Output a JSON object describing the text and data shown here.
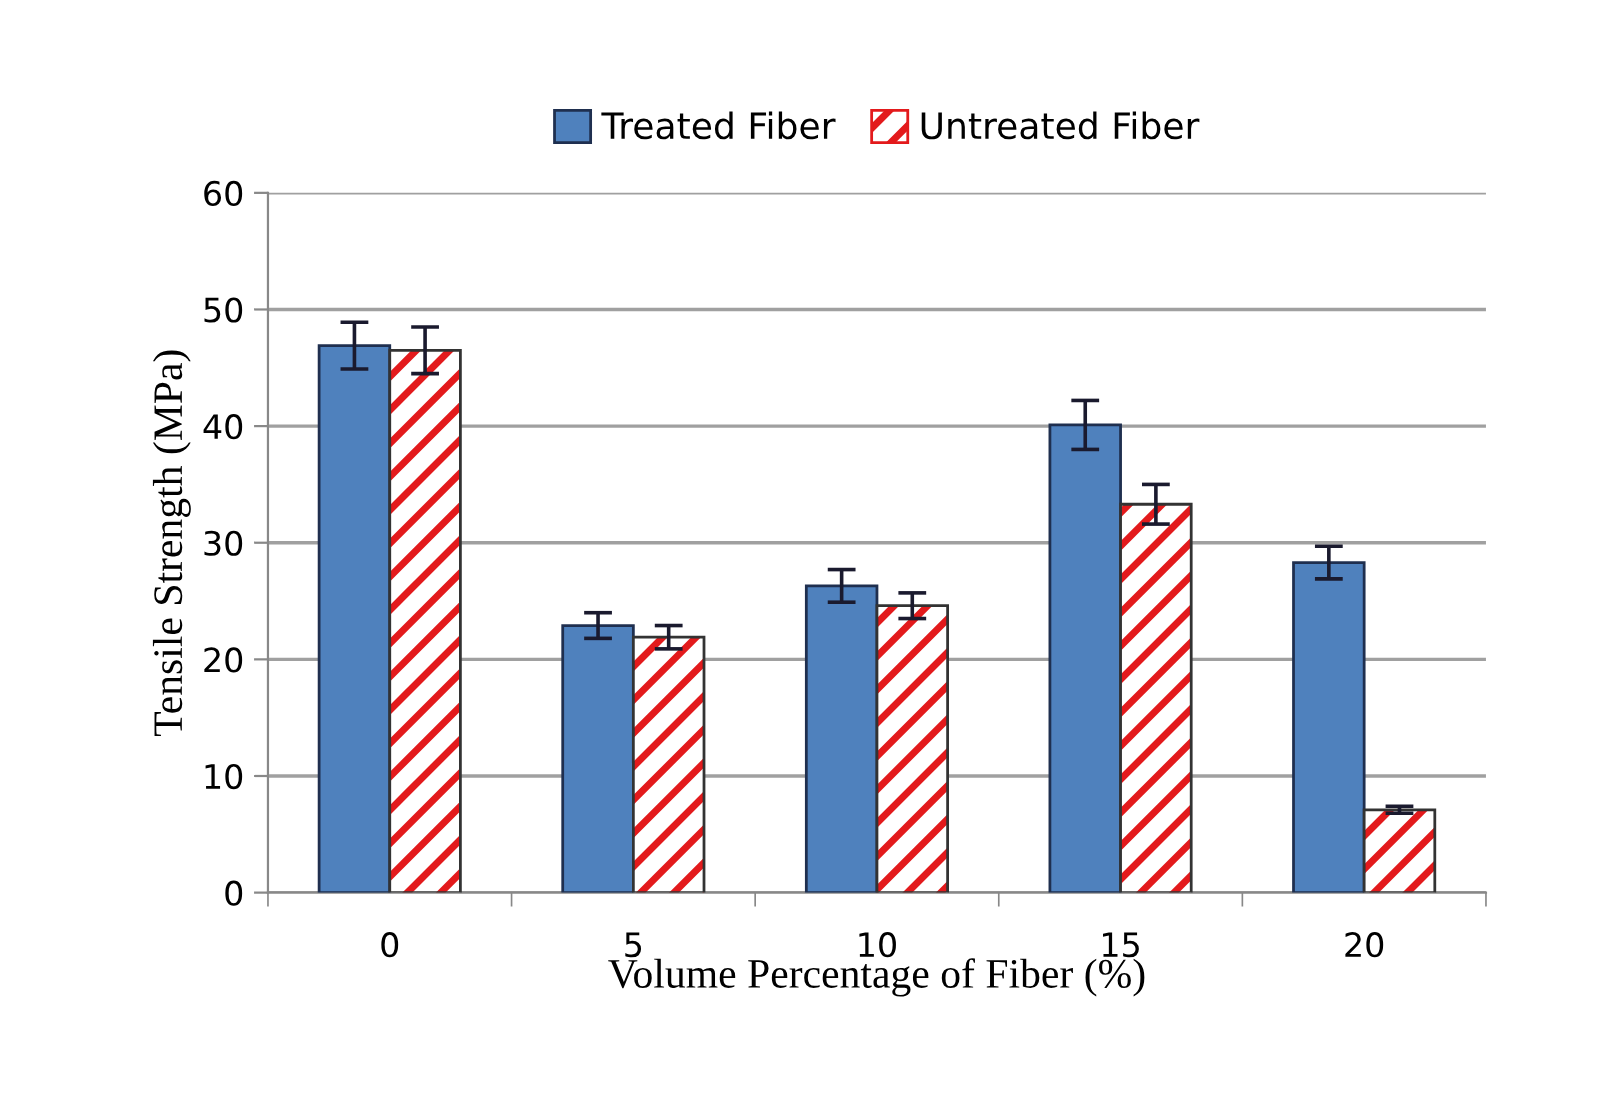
{
  "chart_data": {
    "type": "bar",
    "xlabel": "Volume Percentage of Fiber (%)",
    "ylabel": "Tensile Strength (MPa)",
    "categories": [
      "0",
      "5",
      "10",
      "15",
      "20"
    ],
    "series": [
      {
        "name": "Treated Fiber",
        "color": "#4f81bd",
        "values": [
          46.9,
          22.9,
          26.3,
          40.1,
          28.3
        ],
        "errors": [
          2,
          1.1,
          1.4,
          2.1,
          1.4
        ]
      },
      {
        "name": "Untreated Fiber",
        "color": "#e31a1c",
        "values": [
          46.5,
          21.9,
          24.6,
          33.3,
          7.1
        ],
        "errors": [
          2,
          1,
          1.1,
          1.7,
          0.3
        ]
      }
    ],
    "ylim": [
      0,
      60
    ],
    "yticks": [
      0,
      10,
      20,
      30,
      40,
      50,
      60
    ],
    "grid": "y",
    "legend": "top"
  }
}
